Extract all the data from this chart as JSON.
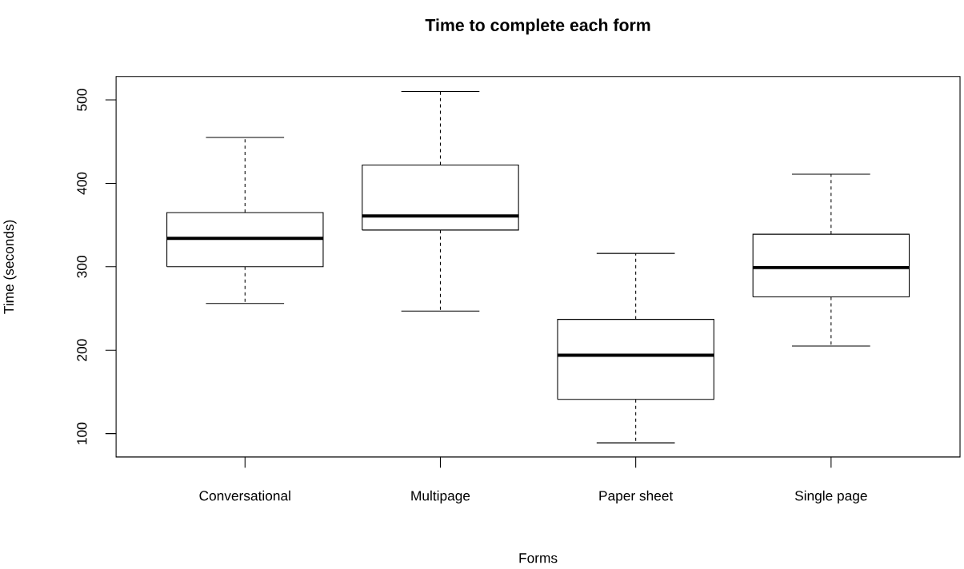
{
  "chart_data": {
    "type": "box",
    "title": "Time to complete each form",
    "xlabel": "Forms",
    "ylabel": "Time (seconds)",
    "categories": [
      "Conversational",
      "Multipage",
      "Paper sheet",
      "Single page"
    ],
    "boxes": [
      {
        "low": 256,
        "q1": 300,
        "median": 334,
        "q3": 365,
        "high": 455
      },
      {
        "low": 247,
        "q1": 344,
        "median": 361,
        "q3": 422,
        "high": 510
      },
      {
        "low": 89,
        "q1": 141,
        "median": 194,
        "q3": 237,
        "high": 316
      },
      {
        "low": 205,
        "q1": 264,
        "median": 299,
        "q3": 339,
        "high": 411
      }
    ],
    "ylim": [
      72,
      528
    ],
    "yticks": [
      100,
      200,
      300,
      400,
      500
    ]
  }
}
